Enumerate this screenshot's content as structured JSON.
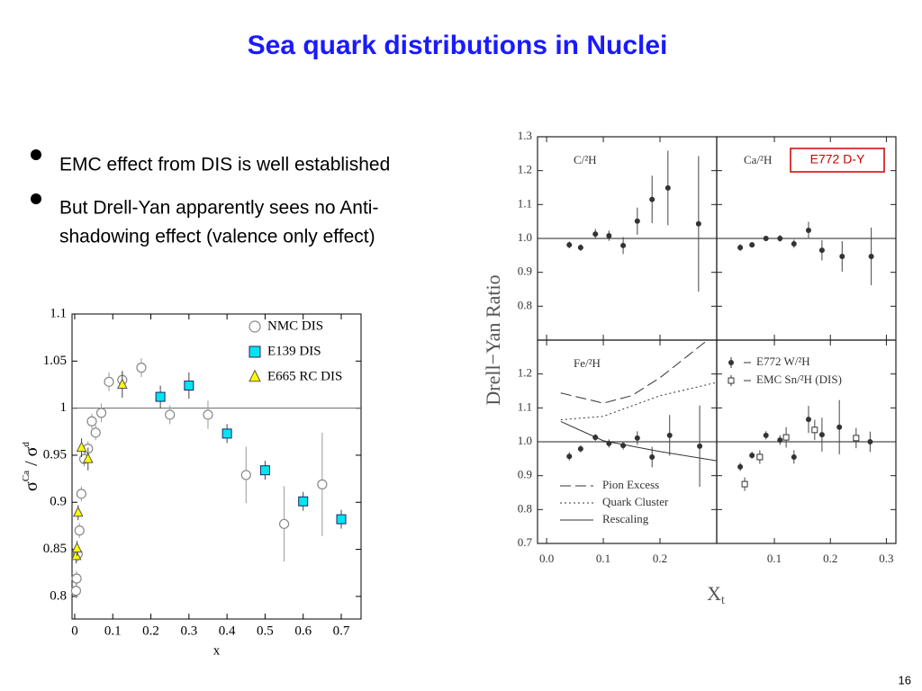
{
  "title": "Sea quark distributions in Nuclei",
  "bullets": [
    "EMC effect from DIS is well established",
    [
      "But Drell-Yan apparently sees no Anti-",
      "shadowing effect (valence only effect)"
    ]
  ],
  "page_number": "16",
  "chart_data": [
    {
      "type": "scatter",
      "xlabel": "x",
      "ylabel": [
        "σ",
        "Ca",
        " / σ",
        "d"
      ],
      "xlim": [
        -0.007,
        0.752
      ],
      "ylim": [
        0.776,
        1.1
      ],
      "xticks": [
        0,
        0.1,
        0.2,
        0.3,
        0.4,
        0.5,
        0.6,
        0.7
      ],
      "yticks": [
        0.8,
        0.85,
        0.9,
        0.95,
        1,
        1.05,
        1.1
      ],
      "legend": "upper right",
      "reference_line": 1,
      "series": [
        {
          "name": "NMC DIS",
          "marker": "circle",
          "color": "#888888",
          "x": [
            0.0035,
            0.005,
            0.008,
            0.0125,
            0.0175,
            0.025,
            0.035,
            0.045,
            0.055,
            0.07,
            0.09,
            0.125,
            0.175,
            0.25,
            0.35,
            0.45,
            0.55,
            0.65
          ],
          "values": [
            0.806,
            0.819,
            0.845,
            0.87,
            0.909,
            0.946,
            0.957,
            0.986,
            0.974,
            0.995,
            1.028,
            1.03,
            1.043,
            0.993,
            0.993,
            0.929,
            0.877,
            0.919
          ],
          "errors": [
            0.008,
            0.008,
            0.008,
            0.008,
            0.008,
            0.008,
            0.008,
            0.008,
            0.008,
            0.01,
            0.01,
            0.01,
            0.01,
            0.01,
            0.015,
            0.03,
            0.04,
            0.055
          ]
        },
        {
          "name": "E139 DIS",
          "marker": "square",
          "color": "#00e5ee",
          "x": [
            0.225,
            0.3,
            0.4,
            0.5,
            0.6,
            0.7
          ],
          "values": [
            1.012,
            1.024,
            0.973,
            0.934,
            0.901,
            0.882
          ],
          "errors": [
            0.012,
            0.014,
            0.01,
            0.01,
            0.01,
            0.01
          ]
        },
        {
          "name": "E665 RC DIS",
          "marker": "triangle",
          "color": "#ffff00",
          "x": [
            0.004,
            0.006,
            0.009,
            0.018,
            0.035,
            0.125
          ],
          "values": [
            0.843,
            0.851,
            0.889,
            0.958,
            0.946,
            1.025
          ],
          "errors": [
            0.008,
            0.008,
            0.008,
            0.01,
            0.012,
            0.014
          ]
        }
      ]
    },
    {
      "type": "panels",
      "annotation": "E772 D-Y",
      "ylabel": "Drell−Yan Ratio",
      "xlabel": [
        "X",
        "t"
      ],
      "reference_line": 1,
      "panels": [
        {
          "label": "C/²H",
          "xlim": [
            -0.016,
            0.3
          ],
          "ylim": [
            0.7,
            1.3
          ],
          "yticks": [
            0.8,
            0.9,
            {
              "value": 1,
              "label": "1.0"
            },
            1.1,
            1.2,
            1.3
          ],
          "series": [
            {
              "marker": "filled-circle",
              "color": "#333333",
              "x": [
                0.04,
                0.06,
                0.086,
                0.11,
                0.135,
                0.16,
                0.186,
                0.214,
                0.268
              ],
              "values": [
                0.981,
                0.973,
                1.013,
                1.008,
                0.979,
                1.051,
                1.115,
                1.149,
                1.043
              ],
              "errors": [
                0.01,
                0.01,
                0.015,
                0.015,
                0.025,
                0.04,
                0.07,
                0.11,
                0.2
              ]
            }
          ]
        },
        {
          "label": "Ca/²H",
          "xlim": [
            -0.003,
            0.317
          ],
          "ylim": [
            0.7,
            1.3
          ],
          "series": [
            {
              "marker": "filled-circle",
              "color": "#333333",
              "x": [
                0.039,
                0.06,
                0.085,
                0.11,
                0.135,
                0.161,
                0.185,
                0.221,
                0.273
              ],
              "values": [
                0.973,
                0.981,
                1.0,
                1.0,
                0.984,
                1.024,
                0.965,
                0.947,
                0.947
              ],
              "errors": [
                0.01,
                0.008,
                0.008,
                0.01,
                0.012,
                0.025,
                0.03,
                0.045,
                0.085
              ]
            }
          ]
        },
        {
          "label": "Fe/²H",
          "xlim": [
            -0.016,
            0.3
          ],
          "ylim": [
            0.7,
            1.3
          ],
          "xticks": [
            {
              "value": 0,
              "label": "0.0"
            },
            0.1,
            0.2
          ],
          "yticks": [
            0.7,
            0.8,
            0.9,
            {
              "value": 1,
              "label": "1.0"
            },
            1.1,
            1.2
          ],
          "legend": "lower left",
          "series": [
            {
              "marker": "filled-circle",
              "color": "#333333",
              "x": [
                0.04,
                0.06,
                0.086,
                0.11,
                0.135,
                0.16,
                0.186,
                0.217,
                0.27
              ],
              "values": [
                0.957,
                0.979,
                1.013,
                0.995,
                0.989,
                1.011,
                0.955,
                1.019,
                0.987
              ],
              "errors": [
                0.012,
                0.01,
                0.01,
                0.012,
                0.012,
                0.02,
                0.03,
                0.06,
                0.12
              ]
            }
          ],
          "curves": [
            {
              "name": "Pion Excess",
              "dash": "dashed",
              "x": [
                0.025,
                0.1,
                0.15,
                0.2,
                0.25,
                0.28
              ],
              "values": [
                1.144,
                1.114,
                1.136,
                1.189,
                1.255,
                1.295
              ]
            },
            {
              "name": "Quark Cluster",
              "dash": "dotted",
              "x": [
                0.025,
                0.1,
                0.2,
                0.3
              ],
              "values": [
                1.065,
                1.075,
                1.136,
                1.175
              ]
            },
            {
              "name": "Rescaling",
              "dash": "solid",
              "x": [
                0.025,
                0.1,
                0.2,
                0.3
              ],
              "values": [
                1.06,
                1.003,
                0.971,
                0.944
              ]
            }
          ]
        },
        {
          "xlim": [
            -0.003,
            0.317
          ],
          "ylim": [
            0.7,
            1.3
          ],
          "xticks": [
            0.1,
            0.2,
            0.3
          ],
          "legend": "upper left",
          "series": [
            {
              "name": "E772 W/²H",
              "marker": "filled-circle",
              "color": "#333333",
              "x": [
                0.039,
                0.06,
                0.085,
                0.11,
                0.135,
                0.161,
                0.185,
                0.216,
                0.271
              ],
              "values": [
                0.926,
                0.96,
                1.019,
                1.005,
                0.955,
                1.066,
                1.021,
                1.043,
                1.0
              ],
              "errors": [
                0.012,
                0.01,
                0.012,
                0.014,
                0.02,
                0.04,
                0.05,
                0.08,
                0.03
              ]
            },
            {
              "name": "EMC Sn/²H (DIS)",
              "marker": "open-square",
              "color": "#333333",
              "x": [
                0.047,
                0.074,
                0.121,
                0.172,
                0.246
              ],
              "values": [
                0.875,
                0.955,
                1.013,
                1.035,
                1.011
              ],
              "errors": [
                0.02,
                0.02,
                0.03,
                0.03,
                0.03
              ]
            }
          ]
        }
      ]
    }
  ]
}
